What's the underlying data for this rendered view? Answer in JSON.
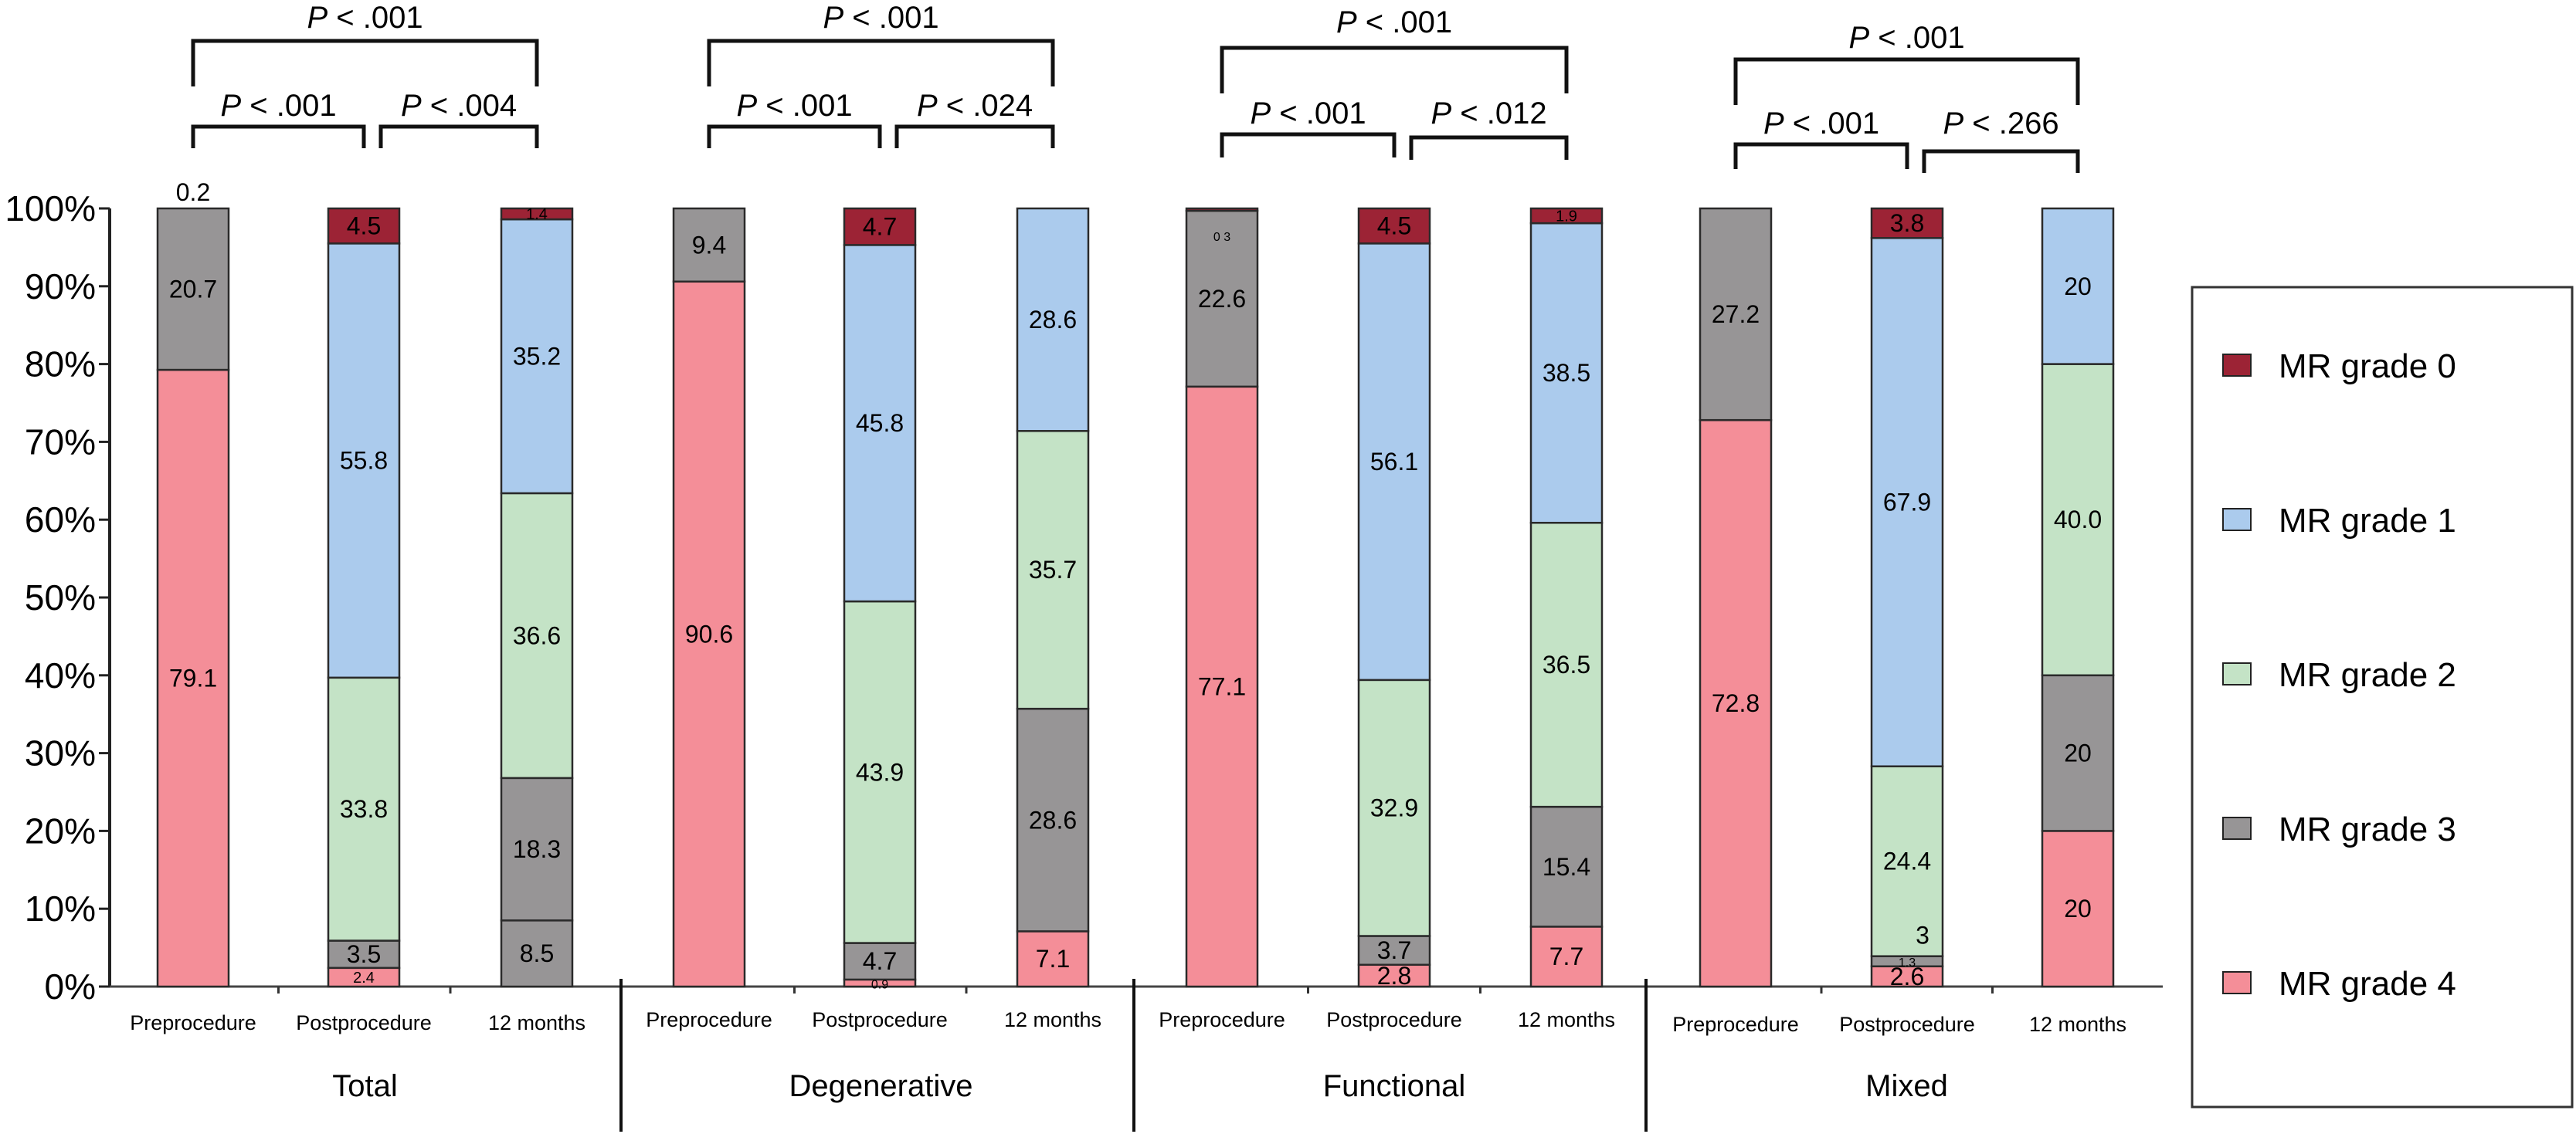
{
  "chart_data": {
    "type": "bar",
    "stacked": true,
    "title": "",
    "xlabel": "",
    "ylabel": "",
    "ylim": [
      0,
      100
    ],
    "y_ticks": [
      "0%",
      "10%",
      "20%",
      "30%",
      "40%",
      "50%",
      "60%",
      "70%",
      "80%",
      "90%",
      "100%"
    ],
    "grid": false,
    "legend_position": "right",
    "series_order_bottom_to_top": [
      "MR grade 4",
      "MR grade 3",
      "MR grade 2",
      "MR grade 1",
      "MR grade 0"
    ],
    "legend": [
      {
        "name": "MR grade 0",
        "color": "#9c2335"
      },
      {
        "name": "MR grade 1",
        "color": "#abcbed"
      },
      {
        "name": "MR grade 2",
        "color": "#c4e3c6"
      },
      {
        "name": "MR grade 3",
        "color": "#979596"
      },
      {
        "name": "MR grade 4",
        "color": "#f48e98"
      }
    ],
    "groups": [
      {
        "name": "Total",
        "comparisons": [
          {
            "from": 0,
            "to": 2,
            "label": ".001",
            "level": "top"
          },
          {
            "from": 0,
            "to": 1,
            "label": ".001",
            "level": "low"
          },
          {
            "from": 1,
            "to": 2,
            "label": ".004",
            "level": "low"
          }
        ],
        "bars": [
          {
            "category": "Preprocedure",
            "grade0": 0,
            "grade1": 0,
            "grade2": 0,
            "grade3": 20.7,
            "grade4": 79.1,
            "extra_label": "0.2"
          },
          {
            "category": "Postprocedure",
            "grade0": 4.5,
            "grade1": 55.8,
            "grade2": 33.8,
            "grade3": 3.5,
            "grade4": 2.4
          },
          {
            "category": "12 months",
            "grade0": 1.4,
            "grade1": 35.2,
            "grade2": 36.6,
            "grade3": 18.3,
            "grade4": 8.5,
            "grade4_rendered_color": "#979596"
          }
        ]
      },
      {
        "name": "Degenerative",
        "comparisons": [
          {
            "from": 0,
            "to": 2,
            "label": ".001",
            "level": "top"
          },
          {
            "from": 0,
            "to": 1,
            "label": ".001",
            "level": "low"
          },
          {
            "from": 1,
            "to": 2,
            "label": ".024",
            "level": "low"
          }
        ],
        "bars": [
          {
            "category": "Preprocedure",
            "grade0": 0,
            "grade1": 0,
            "grade2": 0,
            "grade3": 9.4,
            "grade4": 90.6
          },
          {
            "category": "Postprocedure",
            "grade0": 4.7,
            "grade1": 45.8,
            "grade2": 43.9,
            "grade3": 4.7,
            "grade4": 0.9
          },
          {
            "category": "12 months",
            "grade0": 0,
            "grade1": 28.6,
            "grade2": 35.7,
            "grade3": 28.6,
            "grade4": 7.1
          }
        ]
      },
      {
        "name": "Functional",
        "comparisons": [
          {
            "from": 0,
            "to": 2,
            "label": ".001",
            "level": "top"
          },
          {
            "from": 0,
            "to": 1,
            "label": ".001",
            "level": "low"
          },
          {
            "from": 1,
            "to": 2,
            "label": ".012",
            "level": "low"
          }
        ],
        "bars": [
          {
            "category": "Preprocedure",
            "grade0": 0.3,
            "grade1": 0,
            "grade2": 0,
            "grade3": 22.6,
            "grade4": 77.1,
            "grade0_label": "0 3"
          },
          {
            "category": "Postprocedure",
            "grade0": 4.5,
            "grade1": 56.1,
            "grade2": 32.9,
            "grade3": 3.7,
            "grade4": 2.8
          },
          {
            "category": "12 months",
            "grade0": 1.9,
            "grade1": 38.5,
            "grade2": 36.5,
            "grade3": 15.4,
            "grade4": 7.7
          }
        ]
      },
      {
        "name": "Mixed",
        "comparisons": [
          {
            "from": 0,
            "to": 2,
            "label": ".001",
            "level": "top"
          },
          {
            "from": 0,
            "to": 1,
            "label": ".001",
            "level": "low"
          },
          {
            "from": 1,
            "to": 2,
            "label": ".266",
            "level": "low"
          }
        ],
        "bars": [
          {
            "category": "Preprocedure",
            "grade0": 0,
            "grade1": 0,
            "grade2": 0,
            "grade3": 27.2,
            "grade4": 72.8
          },
          {
            "category": "Postprocedure",
            "grade0": 3.8,
            "grade1": 67.9,
            "grade2": 24.4,
            "grade3": 1.3,
            "grade4": 2.6,
            "extra_label": "3"
          },
          {
            "category": "12 months",
            "grade0": 0,
            "grade1": 20,
            "grade2": 40.0,
            "grade3": 20,
            "grade4": 20
          }
        ]
      }
    ],
    "p_prefix": "P",
    "p_operator": "<"
  }
}
